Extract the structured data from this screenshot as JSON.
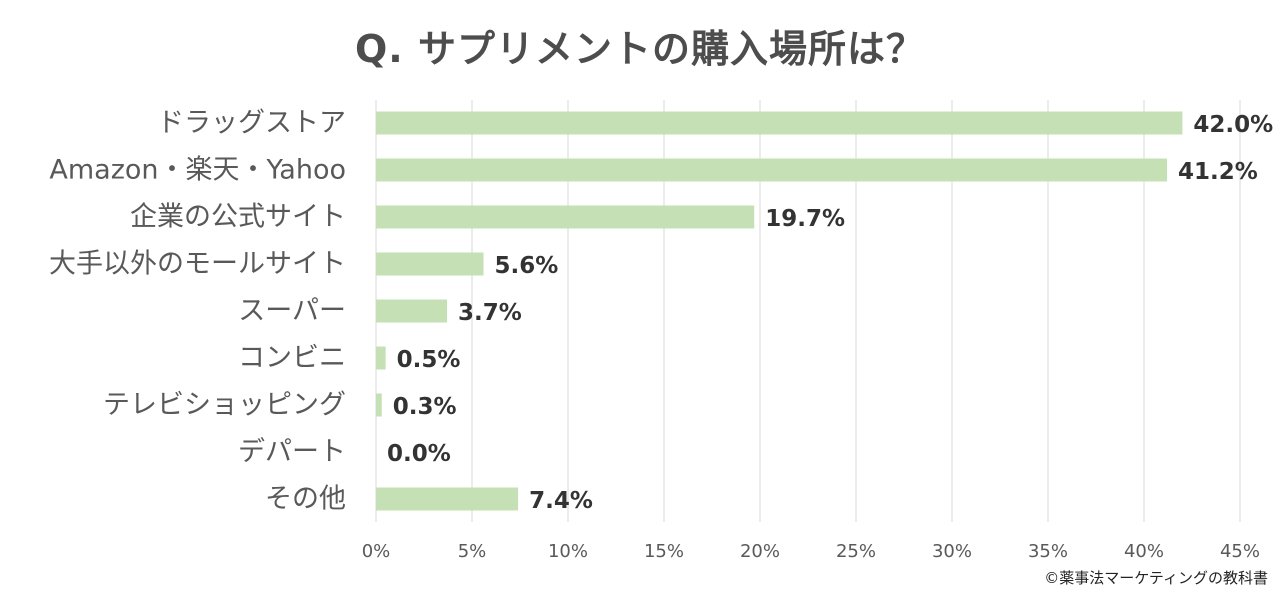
{
  "chart_data": {
    "type": "bar",
    "orientation": "horizontal",
    "title": "Q. サプリメントの購入場所は？",
    "categories": [
      "ドラッグストア",
      "Amazon・楽天・Yahoo",
      "企業の公式サイト",
      "大手以外のモールサイト",
      "スーパー",
      "コンビニ",
      "テレビショッピング",
      "デパート",
      "その他"
    ],
    "values": [
      42.0,
      41.2,
      19.7,
      5.6,
      3.7,
      0.5,
      0.3,
      0.0,
      7.4
    ],
    "value_labels": [
      "42.0%",
      "41.2%",
      "19.7%",
      "5.6%",
      "3.7%",
      "0.5%",
      "0.3%",
      "0.0%",
      "7.4%"
    ],
    "xlim": [
      0,
      45
    ],
    "x_ticks": [
      0,
      5,
      10,
      15,
      20,
      25,
      30,
      35,
      40,
      45
    ],
    "x_tick_labels": [
      "0%",
      "5%",
      "10%",
      "15%",
      "20%",
      "25%",
      "30%",
      "35%",
      "40%",
      "45%"
    ],
    "xlabel": "",
    "ylabel": "",
    "grid": "vertical",
    "legend": "none",
    "colors": {
      "bar": "#c5e0b4",
      "grid": "#d9d9d9",
      "category_text": "#595959",
      "value_text": "#333333",
      "tick_text": "#595959"
    }
  },
  "credit": "©薬事法マーケティングの教科書"
}
